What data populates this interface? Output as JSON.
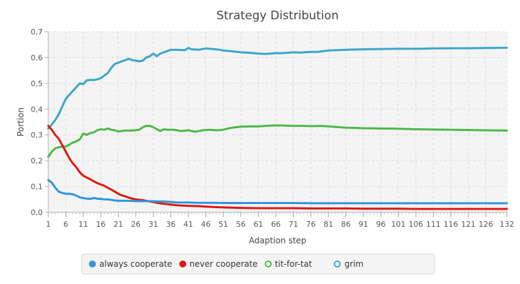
{
  "chart_data": {
    "type": "line",
    "title": "Strategy Distribution",
    "xlabel": "Adaption step",
    "ylabel": "Portion",
    "xlim": [
      1,
      132
    ],
    "ylim": [
      0,
      0.7
    ],
    "x_ticks": [
      1,
      6,
      11,
      16,
      21,
      26,
      31,
      36,
      41,
      46,
      51,
      56,
      61,
      66,
      71,
      76,
      81,
      86,
      91,
      96,
      101,
      106,
      111,
      116,
      121,
      126,
      132
    ],
    "x_minor_step": 1,
    "y_ticks": [
      "0,0",
      "0,1",
      "0,2",
      "0,3",
      "0,4",
      "0,5",
      "0,6",
      "0,7"
    ],
    "y_tick_values": [
      0,
      0.1,
      0.2,
      0.3,
      0.4,
      0.5,
      0.6,
      0.7
    ],
    "grid": true,
    "legend_position": "bottom",
    "series": [
      {
        "name": "always cooperate",
        "color": "#2e95de",
        "marker": "filled",
        "points": [
          [
            1,
            0.125
          ],
          [
            2,
            0.115
          ],
          [
            3,
            0.095
          ],
          [
            4,
            0.08
          ],
          [
            5,
            0.075
          ],
          [
            6,
            0.072
          ],
          [
            7,
            0.072
          ],
          [
            8,
            0.07
          ],
          [
            9,
            0.065
          ],
          [
            10,
            0.058
          ],
          [
            11,
            0.055
          ],
          [
            12,
            0.053
          ],
          [
            13,
            0.052
          ],
          [
            14,
            0.055
          ],
          [
            15,
            0.053
          ],
          [
            16,
            0.052
          ],
          [
            17,
            0.05
          ],
          [
            18,
            0.05
          ],
          [
            19,
            0.048
          ],
          [
            20,
            0.046
          ],
          [
            21,
            0.045
          ],
          [
            23,
            0.045
          ],
          [
            25,
            0.044
          ],
          [
            27,
            0.043
          ],
          [
            29,
            0.043
          ],
          [
            31,
            0.043
          ],
          [
            33,
            0.042
          ],
          [
            34,
            0.042
          ],
          [
            36,
            0.04
          ],
          [
            38,
            0.038
          ],
          [
            41,
            0.038
          ],
          [
            44,
            0.037
          ],
          [
            46,
            0.037
          ],
          [
            49,
            0.037
          ],
          [
            51,
            0.036
          ],
          [
            56,
            0.036
          ],
          [
            61,
            0.036
          ],
          [
            66,
            0.036
          ],
          [
            71,
            0.036
          ],
          [
            76,
            0.035
          ],
          [
            81,
            0.035
          ],
          [
            86,
            0.035
          ],
          [
            91,
            0.035
          ],
          [
            96,
            0.035
          ],
          [
            101,
            0.035
          ],
          [
            106,
            0.035
          ],
          [
            111,
            0.035
          ],
          [
            116,
            0.035
          ],
          [
            121,
            0.035
          ],
          [
            126,
            0.035
          ],
          [
            132,
            0.035
          ]
        ]
      },
      {
        "name": "never cooperate",
        "color": "#e0170f",
        "marker": "filled",
        "points": [
          [
            1,
            0.335
          ],
          [
            2,
            0.32
          ],
          [
            3,
            0.3
          ],
          [
            4,
            0.285
          ],
          [
            5,
            0.26
          ],
          [
            6,
            0.235
          ],
          [
            7,
            0.21
          ],
          [
            8,
            0.19
          ],
          [
            9,
            0.175
          ],
          [
            10,
            0.155
          ],
          [
            11,
            0.142
          ],
          [
            12,
            0.135
          ],
          [
            13,
            0.128
          ],
          [
            14,
            0.12
          ],
          [
            15,
            0.113
          ],
          [
            16,
            0.108
          ],
          [
            17,
            0.103
          ],
          [
            18,
            0.095
          ],
          [
            19,
            0.088
          ],
          [
            20,
            0.08
          ],
          [
            21,
            0.072
          ],
          [
            22,
            0.066
          ],
          [
            23,
            0.062
          ],
          [
            24,
            0.057
          ],
          [
            25,
            0.053
          ],
          [
            26,
            0.05
          ],
          [
            28,
            0.047
          ],
          [
            30,
            0.042
          ],
          [
            32,
            0.037
          ],
          [
            34,
            0.033
          ],
          [
            36,
            0.03
          ],
          [
            38,
            0.027
          ],
          [
            41,
            0.025
          ],
          [
            44,
            0.024
          ],
          [
            46,
            0.022
          ],
          [
            49,
            0.02
          ],
          [
            51,
            0.019
          ],
          [
            56,
            0.017
          ],
          [
            61,
            0.016
          ],
          [
            66,
            0.016
          ],
          [
            71,
            0.016
          ],
          [
            76,
            0.015
          ],
          [
            81,
            0.015
          ],
          [
            86,
            0.015
          ],
          [
            91,
            0.014
          ],
          [
            96,
            0.014
          ],
          [
            101,
            0.014
          ],
          [
            106,
            0.013
          ],
          [
            111,
            0.013
          ],
          [
            116,
            0.013
          ],
          [
            121,
            0.013
          ],
          [
            126,
            0.013
          ],
          [
            132,
            0.013
          ]
        ]
      },
      {
        "name": "tit-for-tat",
        "color": "#4cb848",
        "marker": "hollow",
        "points": [
          [
            1,
            0.215
          ],
          [
            2,
            0.235
          ],
          [
            3,
            0.248
          ],
          [
            4,
            0.252
          ],
          [
            5,
            0.255
          ],
          [
            6,
            0.255
          ],
          [
            7,
            0.262
          ],
          [
            8,
            0.27
          ],
          [
            9,
            0.275
          ],
          [
            10,
            0.283
          ],
          [
            11,
            0.305
          ],
          [
            12,
            0.3
          ],
          [
            13,
            0.307
          ],
          [
            14,
            0.31
          ],
          [
            15,
            0.318
          ],
          [
            16,
            0.322
          ],
          [
            17,
            0.32
          ],
          [
            18,
            0.325
          ],
          [
            19,
            0.32
          ],
          [
            20,
            0.318
          ],
          [
            21,
            0.313
          ],
          [
            23,
            0.317
          ],
          [
            25,
            0.317
          ],
          [
            27,
            0.32
          ],
          [
            28,
            0.33
          ],
          [
            29,
            0.335
          ],
          [
            30,
            0.335
          ],
          [
            31,
            0.33
          ],
          [
            32,
            0.322
          ],
          [
            33,
            0.315
          ],
          [
            34,
            0.322
          ],
          [
            35,
            0.32
          ],
          [
            37,
            0.32
          ],
          [
            39,
            0.315
          ],
          [
            41,
            0.318
          ],
          [
            43,
            0.312
          ],
          [
            45,
            0.318
          ],
          [
            47,
            0.32
          ],
          [
            49,
            0.318
          ],
          [
            51,
            0.32
          ],
          [
            53,
            0.327
          ],
          [
            56,
            0.332
          ],
          [
            59,
            0.333
          ],
          [
            61,
            0.333
          ],
          [
            63,
            0.335
          ],
          [
            66,
            0.337
          ],
          [
            69,
            0.336
          ],
          [
            71,
            0.335
          ],
          [
            74,
            0.335
          ],
          [
            76,
            0.334
          ],
          [
            79,
            0.335
          ],
          [
            81,
            0.333
          ],
          [
            86,
            0.328
          ],
          [
            91,
            0.326
          ],
          [
            96,
            0.325
          ],
          [
            101,
            0.324
          ],
          [
            106,
            0.322
          ],
          [
            111,
            0.321
          ],
          [
            116,
            0.32
          ],
          [
            121,
            0.319
          ],
          [
            126,
            0.318
          ],
          [
            132,
            0.317
          ]
        ]
      },
      {
        "name": "grim",
        "color": "#3aa6c9",
        "marker": "hollow",
        "points": [
          [
            1,
            0.325
          ],
          [
            2,
            0.34
          ],
          [
            3,
            0.358
          ],
          [
            4,
            0.38
          ],
          [
            5,
            0.41
          ],
          [
            6,
            0.44
          ],
          [
            7,
            0.455
          ],
          [
            8,
            0.47
          ],
          [
            9,
            0.485
          ],
          [
            10,
            0.5
          ],
          [
            11,
            0.497
          ],
          [
            12,
            0.512
          ],
          [
            13,
            0.513
          ],
          [
            14,
            0.513
          ],
          [
            15,
            0.515
          ],
          [
            16,
            0.52
          ],
          [
            17,
            0.53
          ],
          [
            18,
            0.54
          ],
          [
            19,
            0.56
          ],
          [
            20,
            0.575
          ],
          [
            21,
            0.58
          ],
          [
            22,
            0.585
          ],
          [
            23,
            0.59
          ],
          [
            24,
            0.595
          ],
          [
            25,
            0.59
          ],
          [
            26,
            0.588
          ],
          [
            27,
            0.585
          ],
          [
            28,
            0.588
          ],
          [
            29,
            0.6
          ],
          [
            30,
            0.605
          ],
          [
            31,
            0.615
          ],
          [
            32,
            0.605
          ],
          [
            33,
            0.615
          ],
          [
            34,
            0.62
          ],
          [
            35,
            0.625
          ],
          [
            36,
            0.63
          ],
          [
            38,
            0.63
          ],
          [
            40,
            0.628
          ],
          [
            41,
            0.637
          ],
          [
            42,
            0.632
          ],
          [
            44,
            0.63
          ],
          [
            46,
            0.635
          ],
          [
            48,
            0.633
          ],
          [
            50,
            0.63
          ],
          [
            51,
            0.627
          ],
          [
            53,
            0.625
          ],
          [
            56,
            0.62
          ],
          [
            59,
            0.618
          ],
          [
            61,
            0.615
          ],
          [
            63,
            0.614
          ],
          [
            66,
            0.617
          ],
          [
            68,
            0.617
          ],
          [
            71,
            0.62
          ],
          [
            73,
            0.619
          ],
          [
            76,
            0.622
          ],
          [
            78,
            0.622
          ],
          [
            81,
            0.627
          ],
          [
            86,
            0.63
          ],
          [
            91,
            0.632
          ],
          [
            96,
            0.633
          ],
          [
            101,
            0.634
          ],
          [
            106,
            0.634
          ],
          [
            111,
            0.635
          ],
          [
            116,
            0.636
          ],
          [
            121,
            0.636
          ],
          [
            126,
            0.637
          ],
          [
            132,
            0.638
          ]
        ]
      }
    ]
  }
}
